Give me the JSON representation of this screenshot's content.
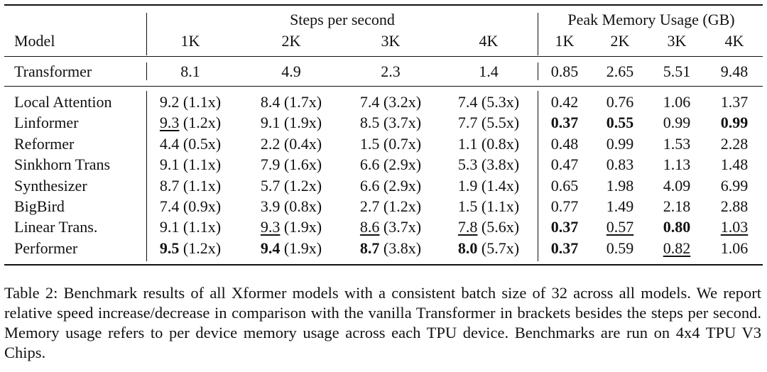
{
  "table": {
    "group_headers": {
      "speed": "Steps per second",
      "memory": "Peak Memory Usage (GB)"
    },
    "model_header": "Model",
    "seq_headers": [
      "1K",
      "2K",
      "3K",
      "4K"
    ],
    "baseline": {
      "name": "Transformer",
      "speed": [
        "8.1",
        "4.9",
        "2.3",
        "1.4"
      ],
      "memory": [
        "0.85",
        "2.65",
        "5.51",
        "9.48"
      ]
    },
    "rows": [
      {
        "name": "Local Attention",
        "speed": [
          {
            "v": "9.2",
            "r": " (1.1x)",
            "s": ""
          },
          {
            "v": "8.4",
            "r": " (1.7x)",
            "s": ""
          },
          {
            "v": "7.4",
            "r": " (3.2x)",
            "s": ""
          },
          {
            "v": "7.4",
            "r": " (5.3x)",
            "s": ""
          }
        ],
        "memory": [
          {
            "v": "0.42",
            "s": ""
          },
          {
            "v": "0.76",
            "s": ""
          },
          {
            "v": "1.06",
            "s": ""
          },
          {
            "v": "1.37",
            "s": ""
          }
        ]
      },
      {
        "name": "Linformer",
        "speed": [
          {
            "v": "9.3",
            "r": " (1.2x)",
            "s": "underline"
          },
          {
            "v": "9.1",
            "r": " (1.9x)",
            "s": ""
          },
          {
            "v": "8.5",
            "r": " (3.7x)",
            "s": ""
          },
          {
            "v": "7.7",
            "r": " (5.5x)",
            "s": ""
          }
        ],
        "memory": [
          {
            "v": "0.37",
            "s": "bold"
          },
          {
            "v": "0.55",
            "s": "bold"
          },
          {
            "v": "0.99",
            "s": ""
          },
          {
            "v": "0.99",
            "s": "bold"
          }
        ]
      },
      {
        "name": "Reformer",
        "speed": [
          {
            "v": "4.4",
            "r": " (0.5x)",
            "s": ""
          },
          {
            "v": "2.2",
            "r": " (0.4x)",
            "s": ""
          },
          {
            "v": "1.5",
            "r": " (0.7x)",
            "s": ""
          },
          {
            "v": "1.1",
            "r": " (0.8x)",
            "s": ""
          }
        ],
        "memory": [
          {
            "v": "0.48",
            "s": ""
          },
          {
            "v": "0.99",
            "s": ""
          },
          {
            "v": "1.53",
            "s": ""
          },
          {
            "v": "2.28",
            "s": ""
          }
        ]
      },
      {
        "name": "Sinkhorn Trans",
        "speed": [
          {
            "v": "9.1",
            "r": " (1.1x)",
            "s": ""
          },
          {
            "v": "7.9",
            "r": " (1.6x)",
            "s": ""
          },
          {
            "v": "6.6",
            "r": " (2.9x)",
            "s": ""
          },
          {
            "v": "5.3",
            "r": " (3.8x)",
            "s": ""
          }
        ],
        "memory": [
          {
            "v": "0.47",
            "s": ""
          },
          {
            "v": "0.83",
            "s": ""
          },
          {
            "v": "1.13",
            "s": ""
          },
          {
            "v": "1.48",
            "s": ""
          }
        ]
      },
      {
        "name": "Synthesizer",
        "speed": [
          {
            "v": "8.7",
            "r": " (1.1x)",
            "s": ""
          },
          {
            "v": "5.7",
            "r": " (1.2x)",
            "s": ""
          },
          {
            "v": "6.6",
            "r": " (2.9x)",
            "s": ""
          },
          {
            "v": "1.9",
            "r": " (1.4x)",
            "s": ""
          }
        ],
        "memory": [
          {
            "v": "0.65",
            "s": ""
          },
          {
            "v": "1.98",
            "s": ""
          },
          {
            "v": "4.09",
            "s": ""
          },
          {
            "v": "6.99",
            "s": ""
          }
        ]
      },
      {
        "name": "BigBird",
        "speed": [
          {
            "v": "7.4",
            "r": " (0.9x)",
            "s": ""
          },
          {
            "v": "3.9",
            "r": " (0.8x)",
            "s": ""
          },
          {
            "v": "2.7",
            "r": " (1.2x)",
            "s": ""
          },
          {
            "v": "1.5",
            "r": " (1.1x)",
            "s": ""
          }
        ],
        "memory": [
          {
            "v": "0.77",
            "s": ""
          },
          {
            "v": "1.49",
            "s": ""
          },
          {
            "v": "2.18",
            "s": ""
          },
          {
            "v": "2.88",
            "s": ""
          }
        ]
      },
      {
        "name": "Linear Trans.",
        "speed": [
          {
            "v": "9.1",
            "r": " (1.1x)",
            "s": ""
          },
          {
            "v": "9.3",
            "r": " (1.9x)",
            "s": "underline"
          },
          {
            "v": "8.6",
            "r": " (3.7x)",
            "s": "underline"
          },
          {
            "v": "7.8",
            "r": " (5.6x)",
            "s": "underline"
          }
        ],
        "memory": [
          {
            "v": "0.37",
            "s": "bold"
          },
          {
            "v": "0.57",
            "s": "underline"
          },
          {
            "v": "0.80",
            "s": "bold"
          },
          {
            "v": "1.03",
            "s": "underline"
          }
        ]
      },
      {
        "name": "Performer",
        "speed": [
          {
            "v": "9.5",
            "r": " (1.2x)",
            "s": "bold"
          },
          {
            "v": "9.4",
            "r": " (1.9x)",
            "s": "bold"
          },
          {
            "v": "8.7",
            "r": " (3.8x)",
            "s": "bold"
          },
          {
            "v": "8.0",
            "r": " (5.7x)",
            "s": "bold"
          }
        ],
        "memory": [
          {
            "v": "0.37",
            "s": "bold"
          },
          {
            "v": "0.59",
            "s": ""
          },
          {
            "v": "0.82",
            "s": "underline"
          },
          {
            "v": "1.06",
            "s": ""
          }
        ]
      }
    ]
  },
  "caption": "Table 2: Benchmark results of all Xformer models with a consistent batch size of 32 across all models. We report relative speed increase/decrease in comparison with the vanilla Transformer in brackets besides the steps per second. Memory usage refers to per device memory usage across each TPU device. Benchmarks are run on 4x4 TPU V3 Chips."
}
